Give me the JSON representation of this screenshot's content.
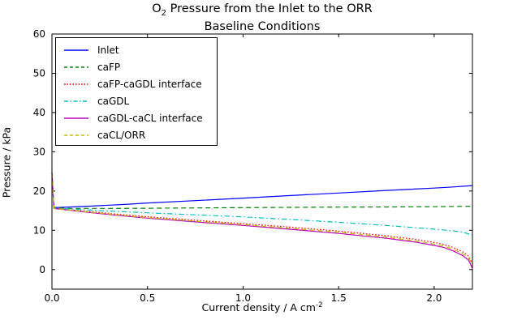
{
  "figure": {
    "title_o": "O",
    "title_sub": "2",
    "title_rest": " Pressure from the Inlet to the ORR",
    "title_line2": "Baseline Conditions",
    "xlabel_main": "Current density / A cm",
    "xlabel_sup": "-2",
    "ylabel": "Pressure / kPa"
  },
  "chart_data": {
    "type": "line",
    "title": "O2 Pressure from the Inlet to the ORR",
    "subtitle": "Baseline Conditions",
    "xlabel": "Current density / A cm^-2",
    "ylabel": "Pressure / kPa",
    "xlim": [
      0,
      2.2
    ],
    "ylim": [
      -5,
      60
    ],
    "xticks": [
      0.0,
      0.5,
      1.0,
      1.5,
      2.0
    ],
    "xtick_labels": [
      "0.0",
      "0.5",
      "1.0",
      "1.5",
      "2.0"
    ],
    "yticks": [
      0,
      10,
      20,
      30,
      40,
      50,
      60
    ],
    "ytick_labels": [
      "0",
      "10",
      "20",
      "30",
      "40",
      "50",
      "60"
    ],
    "grid": false,
    "legend_position": "upper left",
    "frame_color": "#000000",
    "series": [
      {
        "name": "Inlet",
        "color": "#0000ff",
        "style": "solid",
        "points": [
          [
            0,
            24.6
          ],
          [
            0.01,
            15.8
          ],
          [
            0.05,
            15.85
          ],
          [
            0.1,
            15.95
          ],
          [
            0.2,
            16.15
          ],
          [
            0.3,
            16.4
          ],
          [
            0.4,
            16.65
          ],
          [
            0.5,
            16.95
          ],
          [
            0.75,
            17.55
          ],
          [
            1.0,
            18.2
          ],
          [
            1.25,
            18.85
          ],
          [
            1.5,
            19.5
          ],
          [
            1.75,
            20.15
          ],
          [
            2.0,
            20.75
          ],
          [
            2.1,
            21.05
          ],
          [
            2.2,
            21.4
          ]
        ]
      },
      {
        "name": "caFP",
        "color": "#008000",
        "style": "dashed",
        "points": [
          [
            0,
            24.6
          ],
          [
            0.01,
            15.7
          ],
          [
            0.1,
            15.58
          ],
          [
            0.3,
            15.58
          ],
          [
            0.5,
            15.62
          ],
          [
            0.75,
            15.7
          ],
          [
            1.0,
            15.78
          ],
          [
            1.25,
            15.84
          ],
          [
            1.5,
            15.9
          ],
          [
            1.75,
            15.95
          ],
          [
            2.0,
            16.0
          ],
          [
            2.2,
            16.1
          ]
        ]
      },
      {
        "name": "caFP-caGDL interface",
        "color": "#ff0000",
        "style": "dotted",
        "points": [
          [
            0,
            24.6
          ],
          [
            0.01,
            15.6
          ],
          [
            0.05,
            15.45
          ],
          [
            0.1,
            15.2
          ],
          [
            0.2,
            14.75
          ],
          [
            0.3,
            14.3
          ],
          [
            0.4,
            13.85
          ],
          [
            0.5,
            13.45
          ],
          [
            0.75,
            12.55
          ],
          [
            1.0,
            11.7
          ],
          [
            1.25,
            10.8
          ],
          [
            1.5,
            9.8
          ],
          [
            1.75,
            8.6
          ],
          [
            1.9,
            7.7
          ],
          [
            2.0,
            6.9
          ],
          [
            2.05,
            6.4
          ],
          [
            2.1,
            5.6
          ],
          [
            2.15,
            4.5
          ],
          [
            2.18,
            3.4
          ],
          [
            2.2,
            1.5
          ]
        ]
      },
      {
        "name": "caGDL",
        "color": "#00bfbf",
        "style": "dashdot",
        "points": [
          [
            0,
            24.6
          ],
          [
            0.01,
            15.65
          ],
          [
            0.1,
            15.4
          ],
          [
            0.3,
            14.9
          ],
          [
            0.5,
            14.45
          ],
          [
            0.75,
            13.95
          ],
          [
            1.0,
            13.4
          ],
          [
            1.25,
            12.75
          ],
          [
            1.5,
            12.05
          ],
          [
            1.75,
            11.25
          ],
          [
            2.0,
            10.3
          ],
          [
            2.1,
            9.85
          ],
          [
            2.15,
            9.5
          ],
          [
            2.2,
            8.8
          ]
        ]
      },
      {
        "name": "caGDL-caCL interface",
        "color": "#bf00bf",
        "style": "solid",
        "points": [
          [
            0,
            24.6
          ],
          [
            0.01,
            15.55
          ],
          [
            0.05,
            15.35
          ],
          [
            0.1,
            15.05
          ],
          [
            0.2,
            14.52
          ],
          [
            0.3,
            14.02
          ],
          [
            0.4,
            13.55
          ],
          [
            0.5,
            13.1
          ],
          [
            0.75,
            12.15
          ],
          [
            1.0,
            11.25
          ],
          [
            1.25,
            10.25
          ],
          [
            1.5,
            9.2
          ],
          [
            1.75,
            7.95
          ],
          [
            1.9,
            7.0
          ],
          [
            2.0,
            6.15
          ],
          [
            2.05,
            5.65
          ],
          [
            2.1,
            4.75
          ],
          [
            2.15,
            3.55
          ],
          [
            2.18,
            2.4
          ],
          [
            2.2,
            0.3
          ]
        ]
      },
      {
        "name": "caCL/ORR",
        "color": "#bfbf00",
        "style": "dashed",
        "points": [
          [
            0,
            24.6
          ],
          [
            0.01,
            15.57
          ],
          [
            0.05,
            15.4
          ],
          [
            0.1,
            15.12
          ],
          [
            0.2,
            14.62
          ],
          [
            0.3,
            14.15
          ],
          [
            0.4,
            13.68
          ],
          [
            0.5,
            13.25
          ],
          [
            0.75,
            12.33
          ],
          [
            1.0,
            11.45
          ],
          [
            1.25,
            10.5
          ],
          [
            1.5,
            9.5
          ],
          [
            1.75,
            8.25
          ],
          [
            1.9,
            7.3
          ],
          [
            2.0,
            6.5
          ],
          [
            2.05,
            6.0
          ],
          [
            2.1,
            5.15
          ],
          [
            2.15,
            4.0
          ],
          [
            2.18,
            2.9
          ],
          [
            2.2,
            0.9
          ]
        ]
      }
    ]
  }
}
